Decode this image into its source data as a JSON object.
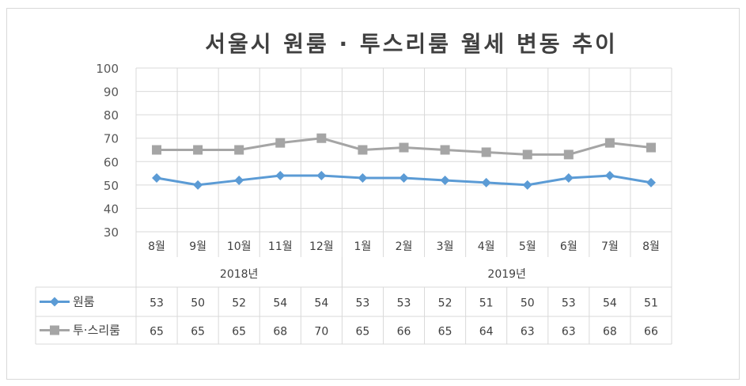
{
  "chart_data": {
    "type": "line",
    "title": "서울시 원룸 · 투스리룸 월세 변동 추이",
    "categories": [
      "8월",
      "9월",
      "10월",
      "11월",
      "12월",
      "1월",
      "2월",
      "3월",
      "4월",
      "5월",
      "6월",
      "7월",
      "8월"
    ],
    "groups": [
      {
        "label": "2018년",
        "start": 0,
        "end": 4
      },
      {
        "label": "2019년",
        "start": 5,
        "end": 12
      }
    ],
    "ylim": [
      30,
      100
    ],
    "yticks": [
      30,
      40,
      50,
      60,
      70,
      80,
      90,
      100
    ],
    "grid": true,
    "legend": "data-table",
    "series": [
      {
        "name": "원룸",
        "color": "#5b9bd5",
        "marker": "diamond",
        "values": [
          53,
          50,
          52,
          54,
          54,
          53,
          53,
          52,
          51,
          50,
          53,
          54,
          51
        ]
      },
      {
        "name": "투·스리룸",
        "color": "#a5a5a5",
        "marker": "square",
        "values": [
          65,
          65,
          65,
          68,
          70,
          65,
          66,
          65,
          64,
          63,
          63,
          68,
          66
        ]
      }
    ]
  }
}
